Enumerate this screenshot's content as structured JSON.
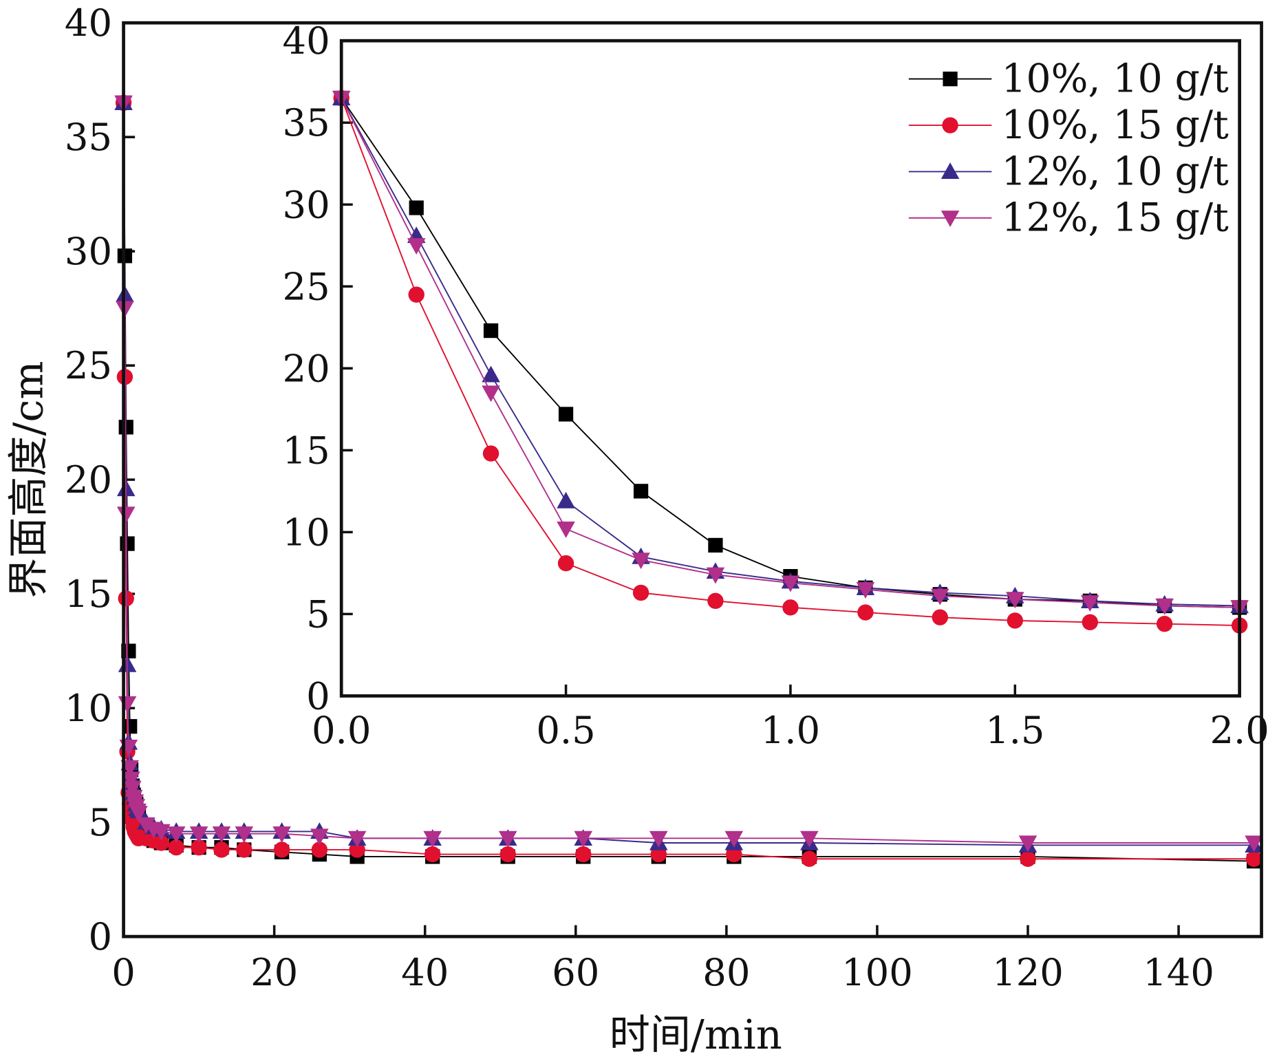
{
  "chart_data": [
    {
      "id": "main",
      "type": "line",
      "title": "",
      "xlabel": "时间/min",
      "ylabel": "界面高度/cm",
      "xlim": [
        0,
        151
      ],
      "ylim": [
        0,
        40
      ],
      "xticks": [
        0,
        20,
        40,
        60,
        80,
        100,
        120,
        140
      ],
      "xtick_labels": [
        "0",
        "20",
        "40",
        "60",
        "80",
        "100",
        "120",
        "140"
      ],
      "yticks": [
        0,
        5,
        10,
        15,
        20,
        25,
        30,
        35,
        40
      ],
      "ytick_labels": [
        "0",
        "5",
        "10",
        "15",
        "20",
        "25",
        "30",
        "35",
        "40"
      ],
      "grid": false,
      "x": [
        0,
        0.167,
        0.333,
        0.5,
        0.667,
        0.833,
        1.0,
        1.167,
        1.333,
        1.5,
        1.667,
        1.833,
        2.0,
        3,
        4,
        5,
        7,
        10,
        13,
        16,
        21,
        26,
        31,
        41,
        51,
        61,
        71,
        81,
        91,
        120,
        150
      ],
      "series": [
        {
          "name": "10%, 10 g/t",
          "color": "#000000",
          "marker": "square",
          "values": [
            36.5,
            29.8,
            22.3,
            17.2,
            12.5,
            9.2,
            7.3,
            6.6,
            6.2,
            5.9,
            5.8,
            5.5,
            5.4,
            4.4,
            4.2,
            4.1,
            4.0,
            3.9,
            3.9,
            3.8,
            3.7,
            3.6,
            3.5,
            3.5,
            3.5,
            3.5,
            3.5,
            3.5,
            3.5,
            3.5,
            3.3
          ]
        },
        {
          "name": "10%, 15 g/t",
          "color": "#e0102e",
          "marker": "circle",
          "values": [
            36.5,
            24.5,
            14.8,
            8.1,
            6.3,
            5.8,
            5.4,
            5.1,
            4.8,
            4.6,
            4.5,
            4.4,
            4.3,
            4.3,
            4.2,
            4.1,
            3.9,
            3.9,
            3.8,
            3.8,
            3.8,
            3.8,
            3.8,
            3.6,
            3.6,
            3.6,
            3.6,
            3.6,
            3.4,
            3.4,
            3.4
          ]
        },
        {
          "name": "12%, 10 g/t",
          "color": "#3a2a8a",
          "marker": "triangle-up",
          "values": [
            36.5,
            28.1,
            19.6,
            11.9,
            8.5,
            7.6,
            7.0,
            6.6,
            6.3,
            6.1,
            5.8,
            5.6,
            5.5,
            5.0,
            4.8,
            4.7,
            4.6,
            4.6,
            4.6,
            4.6,
            4.6,
            4.6,
            4.3,
            4.3,
            4.3,
            4.3,
            4.1,
            4.1,
            4.1,
            4.0,
            4.0
          ]
        },
        {
          "name": "12%, 15 g/t",
          "color": "#b0308a",
          "marker": "triangle-down",
          "values": [
            36.5,
            27.5,
            18.5,
            10.2,
            8.3,
            7.4,
            6.9,
            6.5,
            6.1,
            5.9,
            5.7,
            5.5,
            5.4,
            4.9,
            4.7,
            4.6,
            4.5,
            4.5,
            4.5,
            4.5,
            4.5,
            4.4,
            4.3,
            4.3,
            4.3,
            4.3,
            4.3,
            4.3,
            4.3,
            4.1,
            4.1
          ]
        }
      ]
    },
    {
      "id": "inset",
      "type": "line",
      "title": "",
      "xlabel": "",
      "ylabel": "",
      "xlim": [
        0,
        2.0
      ],
      "ylim": [
        0,
        40
      ],
      "xticks": [
        0,
        0.5,
        1.0,
        1.5,
        2.0
      ],
      "xtick_labels": [
        "0.0",
        "0.5",
        "1.0",
        "1.5",
        "2.0"
      ],
      "yticks": [
        0,
        5,
        10,
        15,
        20,
        25,
        30,
        35,
        40
      ],
      "ytick_labels": [
        "0",
        "5",
        "10",
        "15",
        "20",
        "25",
        "30",
        "35",
        "40"
      ],
      "grid": false,
      "legend": "top-right",
      "x": [
        0,
        0.167,
        0.333,
        0.5,
        0.667,
        0.833,
        1.0,
        1.167,
        1.333,
        1.5,
        1.667,
        1.833,
        2.0
      ],
      "series": [
        {
          "name": "10%, 10 g/t",
          "color": "#000000",
          "marker": "square",
          "values": [
            36.5,
            29.8,
            22.3,
            17.2,
            12.5,
            9.2,
            7.3,
            6.6,
            6.2,
            5.9,
            5.8,
            5.5,
            5.4
          ]
        },
        {
          "name": "10%, 15 g/t",
          "color": "#e0102e",
          "marker": "circle",
          "values": [
            36.5,
            24.5,
            14.8,
            8.1,
            6.3,
            5.8,
            5.4,
            5.1,
            4.8,
            4.6,
            4.5,
            4.4,
            4.3
          ]
        },
        {
          "name": "12%, 10 g/t",
          "color": "#3a2a8a",
          "marker": "triangle-up",
          "values": [
            36.5,
            28.1,
            19.6,
            11.9,
            8.5,
            7.6,
            7.0,
            6.6,
            6.3,
            6.1,
            5.8,
            5.6,
            5.5
          ]
        },
        {
          "name": "12%, 15 g/t",
          "color": "#b0308a",
          "marker": "triangle-down",
          "values": [
            36.5,
            27.5,
            18.5,
            10.2,
            8.3,
            7.4,
            6.9,
            6.5,
            6.1,
            5.9,
            5.7,
            5.5,
            5.4
          ]
        }
      ]
    }
  ]
}
